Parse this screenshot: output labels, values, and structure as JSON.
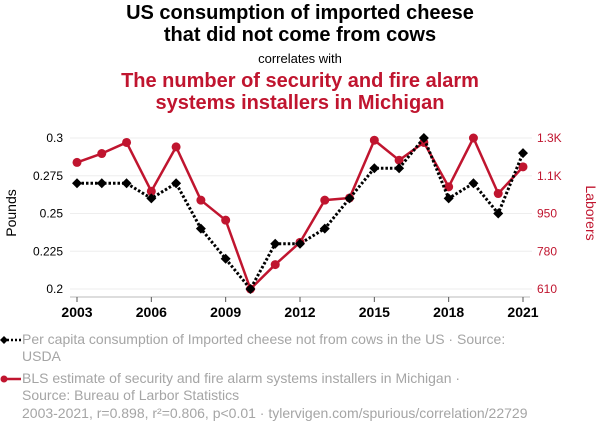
{
  "header": {
    "title": "US consumption of imported cheese that did not come from cows",
    "title_line1": "US consumption of imported cheese",
    "title_line2": "that did not come from cows",
    "subtitle": "correlates with",
    "second_title_line1": "The number of security and fire alarm",
    "second_title_line2": "systems installers in Michigan"
  },
  "colors": {
    "series1": "#000000",
    "series2": "#c0152f",
    "legend_text": "#a5a5a5",
    "grid": "#eeeeee"
  },
  "chart_data": {
    "type": "line",
    "title": "US consumption of imported cheese that did not come from cows correlates with The number of security and fire alarm systems installers in Michigan",
    "x": [
      2003,
      2004,
      2005,
      2006,
      2007,
      2008,
      2009,
      2010,
      2011,
      2012,
      2013,
      2014,
      2015,
      2016,
      2017,
      2018,
      2019,
      2020,
      2021
    ],
    "xticks": [
      "2003",
      "2006",
      "2009",
      "2012",
      "2015",
      "2018",
      "2021"
    ],
    "xtick_values": [
      2003,
      2006,
      2009,
      2012,
      2015,
      2018,
      2021
    ],
    "xlim": [
      2003,
      2021
    ],
    "ylabel_left": "Pounds",
    "ylabel_right": "Laborers",
    "ylim_left": [
      0.2,
      0.3
    ],
    "yticks_left": [
      "0.2",
      "0.225",
      "0.25",
      "0.275",
      "0.3"
    ],
    "ytick_values_left": [
      0.2,
      0.225,
      0.25,
      0.275,
      0.3
    ],
    "ylim_right": [
      610,
      1290
    ],
    "yticks_right": [
      "610",
      "780",
      "950",
      "1.1K",
      "1.3K"
    ],
    "ytick_values_right": [
      610,
      780,
      950,
      1120,
      1290
    ],
    "grid": true,
    "legend_position": "bottom",
    "series": [
      {
        "name": "Per capita consumption of Imported cheese not from cows in the US · Source: USDA",
        "axis": "left",
        "style": "dotted",
        "marker": "diamond",
        "values": [
          0.27,
          0.27,
          0.27,
          0.26,
          0.27,
          0.24,
          0.22,
          0.2,
          0.23,
          0.23,
          0.24,
          0.26,
          0.28,
          0.28,
          0.3,
          0.26,
          0.27,
          0.25,
          0.29
        ]
      },
      {
        "name": "BLS estimate of security and fire alarm systems installers in Michigan · Source: Bureau of Larbor Statistics",
        "axis": "right",
        "style": "solid",
        "marker": "circle",
        "values": [
          1180,
          1220,
          1270,
          1050,
          1250,
          1010,
          920,
          610,
          720,
          820,
          1010,
          1020,
          1280,
          1190,
          1270,
          1070,
          1290,
          1040,
          1160
        ]
      }
    ]
  },
  "legend": {
    "item1": "Per capita consumption of Imported cheese not from cows in the US · Source: USDA",
    "item1_line1": "Per capita consumption of Imported cheese not from cows in the US · Source:",
    "item1_line2": "USDA",
    "item2_line1": "BLS estimate of security and fire alarm systems installers in Michigan ·",
    "item2_line2": "Source: Bureau of Larbor Statistics"
  },
  "footer": {
    "stats": "2003-2021, r=0.898, r²=0.806, p<0.01 · tylervigen.com/spurious/correlation/22729"
  }
}
